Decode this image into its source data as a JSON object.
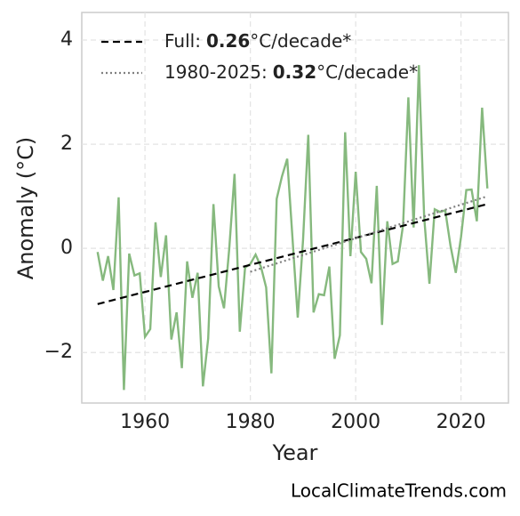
{
  "chart_data": {
    "type": "line",
    "x": [
      1951,
      1952,
      1953,
      1954,
      1955,
      1956,
      1957,
      1958,
      1959,
      1960,
      1961,
      1962,
      1963,
      1964,
      1965,
      1966,
      1967,
      1968,
      1969,
      1970,
      1971,
      1972,
      1973,
      1974,
      1975,
      1976,
      1977,
      1978,
      1979,
      1980,
      1981,
      1982,
      1983,
      1984,
      1985,
      1986,
      1987,
      1988,
      1989,
      1990,
      1991,
      1992,
      1993,
      1994,
      1995,
      1996,
      1997,
      1998,
      1999,
      2000,
      2001,
      2002,
      2003,
      2004,
      2005,
      2006,
      2007,
      2008,
      2009,
      2010,
      2011,
      2012,
      2013,
      2014,
      2015,
      2016,
      2017,
      2018,
      2019,
      2020,
      2021,
      2022,
      2023,
      2024,
      2025
    ],
    "series": [
      {
        "color": "#86b97e",
        "style": "solid",
        "values": [
          -0.07,
          -0.62,
          -0.15,
          -0.8,
          0.98,
          -2.72,
          -0.1,
          -0.52,
          -0.48,
          -1.7,
          -1.55,
          0.5,
          -0.55,
          0.25,
          -1.75,
          -1.23,
          -2.3,
          -0.25,
          -0.95,
          -0.47,
          -2.65,
          -1.73,
          0.85,
          -0.73,
          -1.15,
          0,
          1.43,
          -1.6,
          -0.37,
          -0.3,
          -0.12,
          -0.35,
          -0.75,
          -2.4,
          0.95,
          1.38,
          1.72,
          0.2,
          -1.33,
          0.15,
          2.18,
          -1.23,
          -0.88,
          -0.9,
          -0.35,
          -2.12,
          -1.67,
          2.23,
          -0.15,
          1.47,
          -0.07,
          -0.2,
          -0.67,
          1.2,
          -1.47,
          0.52,
          -0.3,
          -0.25,
          0.45,
          2.9,
          0.4,
          3.52,
          0.6,
          -0.68,
          0.75,
          0.7,
          0.73,
          0.05,
          -0.47,
          0.22,
          1.12,
          1.13,
          0.52,
          2.7,
          1.15
        ]
      },
      {
        "name": "Full:",
        "rate": "0.26",
        "unit": "°C/decade*",
        "color": "#000000",
        "style": "dashed",
        "x": [
          1951,
          2025
        ],
        "values": [
          -1.07,
          0.85
        ]
      },
      {
        "name": "1980-2025:",
        "rate": "0.32",
        "unit": "°C/decade*",
        "color": "#808080",
        "style": "dotted",
        "x": [
          1980,
          2025
        ],
        "values": [
          -0.45,
          1.0
        ]
      }
    ],
    "x_label": "Year",
    "y_label": "Anomaly (°C)",
    "xlim": [
      1948,
      2029
    ],
    "ylim": [
      -2.97,
      4.53
    ],
    "xticks": [
      1960,
      1980,
      2000,
      2020
    ],
    "yticks": [
      {
        "value": -2,
        "label": "−2"
      },
      0,
      2,
      4
    ],
    "grid": true,
    "legend": "upper left",
    "source": "LocalClimateTrends.com"
  }
}
